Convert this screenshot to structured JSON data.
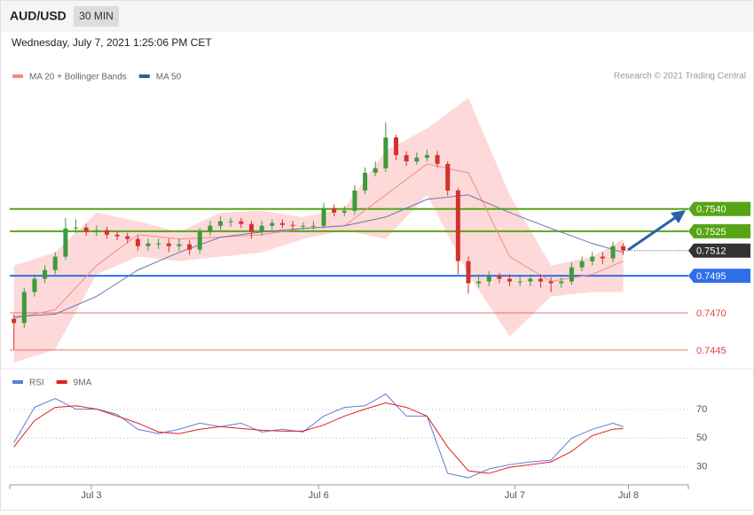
{
  "header": {
    "symbol": "AUD/USD",
    "interval": "30 MIN",
    "timestamp": "Wednesday, July 7, 2021 1:25:06 PM CET"
  },
  "chart_data": [
    {
      "type": "candlestick",
      "source": "Research © 2021 Trading Central",
      "up_color": "#3d9a3d",
      "down_color": "#d0342c",
      "xlim": [
        -0.4,
        65.3
      ],
      "ylim": [
        0.7433,
        0.7639
      ],
      "x": [
        0,
        1,
        2,
        3,
        4,
        5,
        6,
        7,
        8,
        9,
        10,
        11,
        12,
        13,
        14,
        15,
        16,
        17,
        18,
        19,
        20,
        21,
        22,
        23,
        24,
        25,
        26,
        27,
        28,
        29,
        30,
        31,
        32,
        33,
        34,
        35,
        36,
        37,
        38,
        39,
        40,
        41,
        42,
        43,
        44,
        45,
        46,
        47,
        48,
        49,
        50,
        51,
        52,
        53,
        54,
        55,
        56,
        57,
        58,
        59
      ],
      "open": [
        0.7466,
        0.74632,
        0.74841,
        0.7493,
        0.74989,
        0.75079,
        0.75269,
        0.75275,
        0.75245,
        0.75257,
        0.75227,
        0.75216,
        0.75198,
        0.7515,
        0.75168,
        0.75168,
        0.7515,
        0.75162,
        0.75126,
        0.75245,
        0.75287,
        0.75317,
        0.75317,
        0.75299,
        0.75245,
        0.75287,
        0.75305,
        0.75293,
        0.75287,
        0.75287,
        0.75287,
        0.75406,
        0.75376,
        0.75388,
        0.75525,
        0.75644,
        0.75674,
        0.75882,
        0.75763,
        0.75721,
        0.75745,
        0.75763,
        0.75704,
        0.75525,
        0.75049,
        0.749,
        0.74912,
        0.74948,
        0.7493,
        0.74912,
        0.74912,
        0.7493,
        0.74912,
        0.749,
        0.74912,
        0.75007,
        0.75049,
        0.75079,
        0.75067,
        0.7515
      ],
      "high": [
        0.7469,
        0.7487,
        0.7496,
        0.7502,
        0.7511,
        0.7534,
        0.7533,
        0.753,
        0.7529,
        0.7528,
        0.7525,
        0.7524,
        0.7522,
        0.752,
        0.752,
        0.752,
        0.752,
        0.7519,
        0.7527,
        0.7532,
        0.7535,
        0.7534,
        0.7534,
        0.7532,
        0.7532,
        0.7533,
        0.7533,
        0.7532,
        0.7531,
        0.7532,
        0.7544,
        0.7543,
        0.7542,
        0.7556,
        0.7568,
        0.7572,
        0.75983,
        0.759,
        0.7579,
        0.7578,
        0.758,
        0.7579,
        0.7572,
        0.7554,
        0.7508,
        0.7496,
        0.7498,
        0.7497,
        0.7496,
        0.7495,
        0.7496,
        0.7496,
        0.7494,
        0.7494,
        0.7504,
        0.7508,
        0.7511,
        0.7511,
        0.7518,
        0.7517
      ],
      "low": [
        0.74454,
        0.746,
        0.7481,
        0.749,
        0.7496,
        0.7506,
        0.7524,
        0.7522,
        0.7522,
        0.752,
        0.7519,
        0.7517,
        0.7512,
        0.7512,
        0.7513,
        0.7511,
        0.7512,
        0.7509,
        0.751,
        0.7522,
        0.7526,
        0.7528,
        0.7527,
        0.752,
        0.7522,
        0.7526,
        0.7527,
        0.7526,
        0.7526,
        0.7526,
        0.7527,
        0.7535,
        0.7535,
        0.7536,
        0.755,
        0.7562,
        0.7565,
        0.7573,
        0.7569,
        0.757,
        0.7572,
        0.7568,
        0.7549,
        0.7496,
        0.7483,
        0.7487,
        0.7488,
        0.749,
        0.7488,
        0.7488,
        0.7488,
        0.7487,
        0.7484,
        0.7487,
        0.7489,
        0.7498,
        0.7502,
        0.7503,
        0.7504,
        0.7509
      ],
      "close": [
        0.74632,
        0.74841,
        0.7493,
        0.74989,
        0.75079,
        0.75269,
        0.75275,
        0.75245,
        0.75257,
        0.75227,
        0.75216,
        0.75198,
        0.7515,
        0.75168,
        0.75168,
        0.7515,
        0.75162,
        0.75126,
        0.75245,
        0.75287,
        0.75317,
        0.75317,
        0.75299,
        0.75245,
        0.75287,
        0.75305,
        0.75293,
        0.75287,
        0.75287,
        0.75287,
        0.75406,
        0.75376,
        0.75388,
        0.75525,
        0.75644,
        0.75674,
        0.75882,
        0.75763,
        0.75721,
        0.75745,
        0.75763,
        0.75704,
        0.75525,
        0.75049,
        0.749,
        0.74912,
        0.74948,
        0.7493,
        0.74912,
        0.74912,
        0.7493,
        0.74912,
        0.749,
        0.74912,
        0.75007,
        0.75049,
        0.75079,
        0.75067,
        0.7515,
        0.7512
      ],
      "series": [
        {
          "name": "MA 20 + Bollinger Bands",
          "color": "#f28a82",
          "band_color": "#fdd9d9",
          "x": [
            0,
            4,
            8,
            12,
            16,
            20,
            24,
            28,
            32,
            36,
            40,
            44,
            48,
            52,
            56,
            59
          ],
          "upper": [
            0.75019,
            0.75108,
            0.75376,
            0.75317,
            0.75245,
            0.75376,
            0.75388,
            0.75346,
            0.75406,
            0.75793,
            0.75942,
            0.7615,
            0.75495,
            0.75019,
            0.75079,
            0.75198
          ],
          "values": [
            0.74662,
            0.74722,
            0.75019,
            0.75227,
            0.75198,
            0.7521,
            0.75227,
            0.75269,
            0.75287,
            0.75495,
            0.75703,
            0.75644,
            0.75079,
            0.74912,
            0.7496,
            0.75049
          ],
          "lower": [
            0.74365,
            0.74454,
            0.7496,
            0.75079,
            0.75049,
            0.75079,
            0.75108,
            0.75198,
            0.75257,
            0.75198,
            0.75495,
            0.7496,
            0.74543,
            0.74811,
            0.74841,
            0.74841
          ]
        },
        {
          "name": "MA 50",
          "color": "#34599a",
          "line_color": "#6677b3",
          "x": [
            0,
            4,
            8,
            12,
            16,
            20,
            24,
            28,
            32,
            36,
            40,
            44,
            48,
            52,
            56,
            59
          ],
          "values": [
            0.74674,
            0.74692,
            0.74811,
            0.74989,
            0.75108,
            0.7521,
            0.75245,
            0.75269,
            0.75287,
            0.75346,
            0.75465,
            0.75495,
            0.75376,
            0.75269,
            0.75168,
            0.75108
          ]
        }
      ],
      "levels": [
        {
          "value": 0.754,
          "label": "0.7540",
          "color": "#57a514",
          "style": "box"
        },
        {
          "value": 0.7525,
          "label": "0.7525",
          "color": "#57a514",
          "style": "box"
        },
        {
          "value": 0.7512,
          "label": "0.7512",
          "color": "#333333",
          "style": "current"
        },
        {
          "value": 0.7495,
          "label": "0.7495",
          "color": "#2f6fe8",
          "style": "box"
        },
        {
          "value": 0.747,
          "label": "0.7470",
          "color": "#e0443a",
          "style": "text"
        },
        {
          "value": 0.7445,
          "label": "0.7445",
          "color": "#e0443a",
          "style": "text"
        }
      ]
    },
    {
      "type": "line",
      "xlim": [
        -0.4,
        65.3
      ],
      "ylim": [
        18,
        96
      ],
      "yticks": [
        30,
        50,
        70
      ],
      "xticks": [
        {
          "value": 7.5,
          "label": "Jul 3"
        },
        {
          "value": 29.5,
          "label": "Jul 6"
        },
        {
          "value": 48.5,
          "label": "Jul 7"
        },
        {
          "value": 59.5,
          "label": "Jul 8"
        }
      ],
      "series": [
        {
          "name": "RSI",
          "color": "#5b7fd6",
          "x": [
            0,
            2,
            4,
            6,
            8,
            10,
            12,
            14,
            16,
            18,
            20,
            22,
            24,
            26,
            28,
            30,
            32,
            34,
            36,
            38,
            40,
            42,
            44,
            46,
            48,
            50,
            52,
            54,
            56,
            58,
            59
          ],
          "values": [
            46.9,
            71.5,
            77.7,
            70.3,
            70.3,
            66.6,
            56.2,
            53.1,
            56.2,
            60.5,
            58.0,
            60.5,
            54.3,
            56.2,
            54.3,
            65.4,
            71.5,
            72.6,
            80.8,
            65.4,
            65.4,
            25.4,
            22.3,
            28.5,
            31.5,
            33.4,
            34.6,
            50.0,
            56.2,
            60.5,
            58.0
          ]
        },
        {
          "name": "9MA",
          "color": "#e02020",
          "x": [
            0,
            2,
            4,
            6,
            8,
            10,
            12,
            14,
            16,
            18,
            20,
            22,
            24,
            26,
            28,
            30,
            32,
            34,
            36,
            38,
            40,
            42,
            44,
            46,
            48,
            50,
            52,
            54,
            56,
            58,
            59
          ],
          "values": [
            43.8,
            62.3,
            71.5,
            72.6,
            70.3,
            65.4,
            60.5,
            54.3,
            53.1,
            56.2,
            58.0,
            56.8,
            55.5,
            54.9,
            54.9,
            59.2,
            65.4,
            70.3,
            74.6,
            71.5,
            65.4,
            43.8,
            27.2,
            25.4,
            29.7,
            31.5,
            33.4,
            40.8,
            51.8,
            56.2,
            56.8
          ]
        }
      ]
    }
  ]
}
